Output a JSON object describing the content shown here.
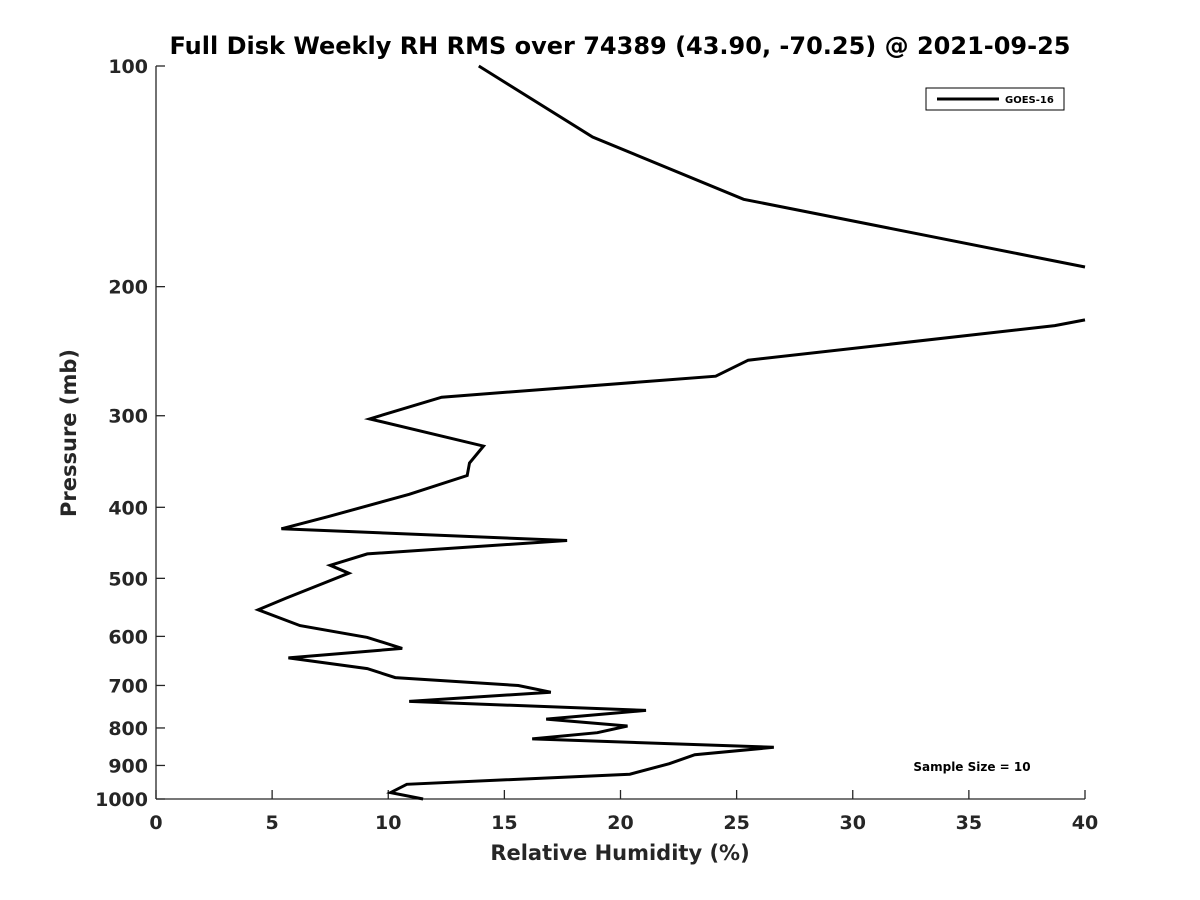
{
  "chart_data": {
    "type": "line",
    "title": "Full Disk Weekly RH RMS over 74389 (43.90, -70.25) @ 2021-09-25",
    "xlabel": "Relative Humidity (%)",
    "ylabel": "Pressure (mb)",
    "xlim": [
      0,
      40
    ],
    "ylim": [
      100,
      1000
    ],
    "y_scale": "log",
    "y_reversed": true,
    "grid": false,
    "legend_position": "top-right",
    "x_ticks": [
      "0",
      "5",
      "10",
      "15",
      "20",
      "25",
      "30",
      "35",
      "40"
    ],
    "y_ticks": [
      "100",
      "200",
      "300",
      "400",
      "500",
      "600",
      "700",
      "800",
      "900",
      "1000"
    ],
    "annotation": "Sample Size = 10",
    "series": [
      {
        "name": "GOES-16",
        "color": "#000000",
        "segments": [
          [
            {
              "x": 13.9,
              "y": 100
            },
            {
              "x": 18.8,
              "y": 125
            },
            {
              "x": 25.3,
              "y": 152
            },
            {
              "x": 40.0,
              "y": 188
            }
          ],
          [
            {
              "x": 40.0,
              "y": 222
            },
            {
              "x": 38.7,
              "y": 226
            },
            {
              "x": 25.5,
              "y": 252
            },
            {
              "x": 24.1,
              "y": 265
            },
            {
              "x": 12.3,
              "y": 283
            },
            {
              "x": 9.2,
              "y": 303
            },
            {
              "x": 14.1,
              "y": 330
            },
            {
              "x": 13.5,
              "y": 348
            },
            {
              "x": 13.4,
              "y": 362
            },
            {
              "x": 10.9,
              "y": 384
            },
            {
              "x": 7.4,
              "y": 412
            },
            {
              "x": 5.4,
              "y": 428
            },
            {
              "x": 17.7,
              "y": 444
            },
            {
              "x": 9.1,
              "y": 463
            },
            {
              "x": 7.5,
              "y": 480
            },
            {
              "x": 8.3,
              "y": 492
            },
            {
              "x": 7.2,
              "y": 508
            },
            {
              "x": 5.6,
              "y": 532
            },
            {
              "x": 4.4,
              "y": 552
            },
            {
              "x": 6.2,
              "y": 580
            },
            {
              "x": 9.1,
              "y": 602
            },
            {
              "x": 10.6,
              "y": 623
            },
            {
              "x": 5.7,
              "y": 642
            },
            {
              "x": 9.1,
              "y": 664
            },
            {
              "x": 10.3,
              "y": 683
            },
            {
              "x": 15.6,
              "y": 700
            },
            {
              "x": 17.0,
              "y": 715
            },
            {
              "x": 10.9,
              "y": 736
            },
            {
              "x": 21.1,
              "y": 757
            },
            {
              "x": 16.8,
              "y": 778
            },
            {
              "x": 20.3,
              "y": 795
            },
            {
              "x": 19.0,
              "y": 812
            },
            {
              "x": 16.2,
              "y": 828
            },
            {
              "x": 26.6,
              "y": 850
            },
            {
              "x": 23.2,
              "y": 870
            },
            {
              "x": 22.1,
              "y": 895
            },
            {
              "x": 20.4,
              "y": 925
            },
            {
              "x": 10.8,
              "y": 955
            },
            {
              "x": 10.1,
              "y": 980
            },
            {
              "x": 11.5,
              "y": 1000
            }
          ]
        ]
      }
    ]
  }
}
